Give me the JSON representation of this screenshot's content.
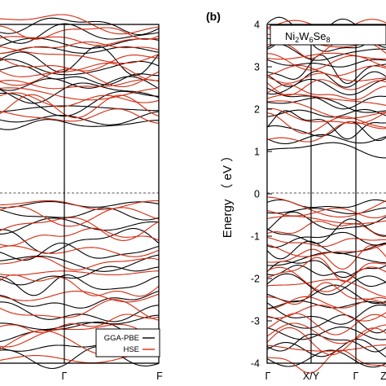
{
  "chart_data": [
    {
      "type": "line",
      "panel": "",
      "title": "",
      "xlabel": "",
      "ylabel": "",
      "x_ticks": [
        "Γ",
        "F"
      ],
      "fermi_level": 0,
      "ylim": [
        -4,
        4
      ],
      "legend": {
        "placement": "bottom-right",
        "entries": [
          "GGA-PBE",
          "HSE"
        ]
      },
      "series": [
        {
          "name": "GGA-PBE",
          "color": "#000000",
          "valence_bands": 14,
          "conduction_bands": 13,
          "valence_top": 0.0,
          "conduction_bottom": 1.45
        },
        {
          "name": "HSE",
          "color": "#d42a10",
          "valence_bands": 14,
          "conduction_bands": 13,
          "valence_top": 0.0,
          "conduction_bottom": 1.7
        }
      ]
    },
    {
      "type": "line",
      "panel": "(b)",
      "title": "Ni2W6Se8",
      "title_parts": {
        "a": "Ni",
        "a_sub": "2",
        "b": "W",
        "b_sub": "6",
        "c": "Se",
        "c_sub": "8"
      },
      "xlabel": "",
      "ylabel": "Energy （ eV ）",
      "x_ticks": [
        "Γ",
        "X/Y",
        "Γ",
        "Z"
      ],
      "y_ticks": [
        "-4",
        "-3",
        "-2",
        "-1",
        "0",
        "1",
        "2",
        "3",
        "4"
      ],
      "fermi_level": 0,
      "ylim": [
        -4,
        4
      ],
      "series": [
        {
          "name": "GGA-PBE",
          "color": "#000000",
          "valence_bands": 18,
          "conduction_bands": 15,
          "valence_top": 0.0,
          "conduction_bottom": 0.9
        },
        {
          "name": "HSE",
          "color": "#d42a10",
          "valence_bands": 18,
          "conduction_bands": 15,
          "valence_top": 0.0,
          "conduction_bottom": 1.3
        }
      ]
    }
  ]
}
